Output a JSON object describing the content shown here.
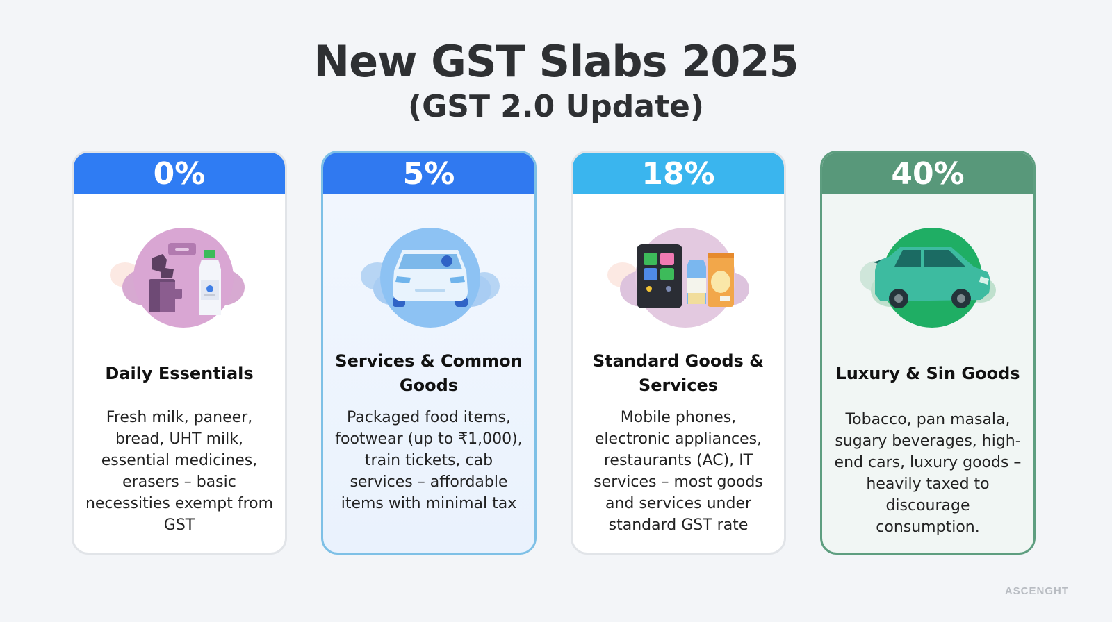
{
  "header": {
    "title": "New GST Slabs 2025",
    "subtitle": "(GST 2.0 Update)"
  },
  "cards": [
    {
      "rate": "0%",
      "label": "Daily Essentials",
      "description": "Fresh milk, paneer, bread, UHT milk, essential medicines, erasers – basic necessities exempt from GST",
      "icon": "milk-bottle-icon",
      "header_color": "#2f7cf3"
    },
    {
      "rate": "5%",
      "label": "Services & Common Goods",
      "description": "Packaged food items, footwear (up to ₹1,000), train tickets, cab services – affordable items with minimal tax",
      "icon": "car-front-icon",
      "header_color": "#3079f0"
    },
    {
      "rate": "18%",
      "label": "Standard Goods & Services",
      "description": "Mobile phones, electronic appliances, restaurants (AC), IT services – most goods and services under standard GST rate",
      "icon": "phone-groceries-icon",
      "header_color": "#3ab5ee"
    },
    {
      "rate": "40%",
      "label": "Luxury & Sin Goods",
      "description": "Tobacco, pan masala, sugary beverages, high-end cars, luxury goods – heavily taxed to discourage consumption.",
      "icon": "luxury-car-icon",
      "header_color": "#58987a"
    }
  ],
  "watermark": "ASCENGHT"
}
